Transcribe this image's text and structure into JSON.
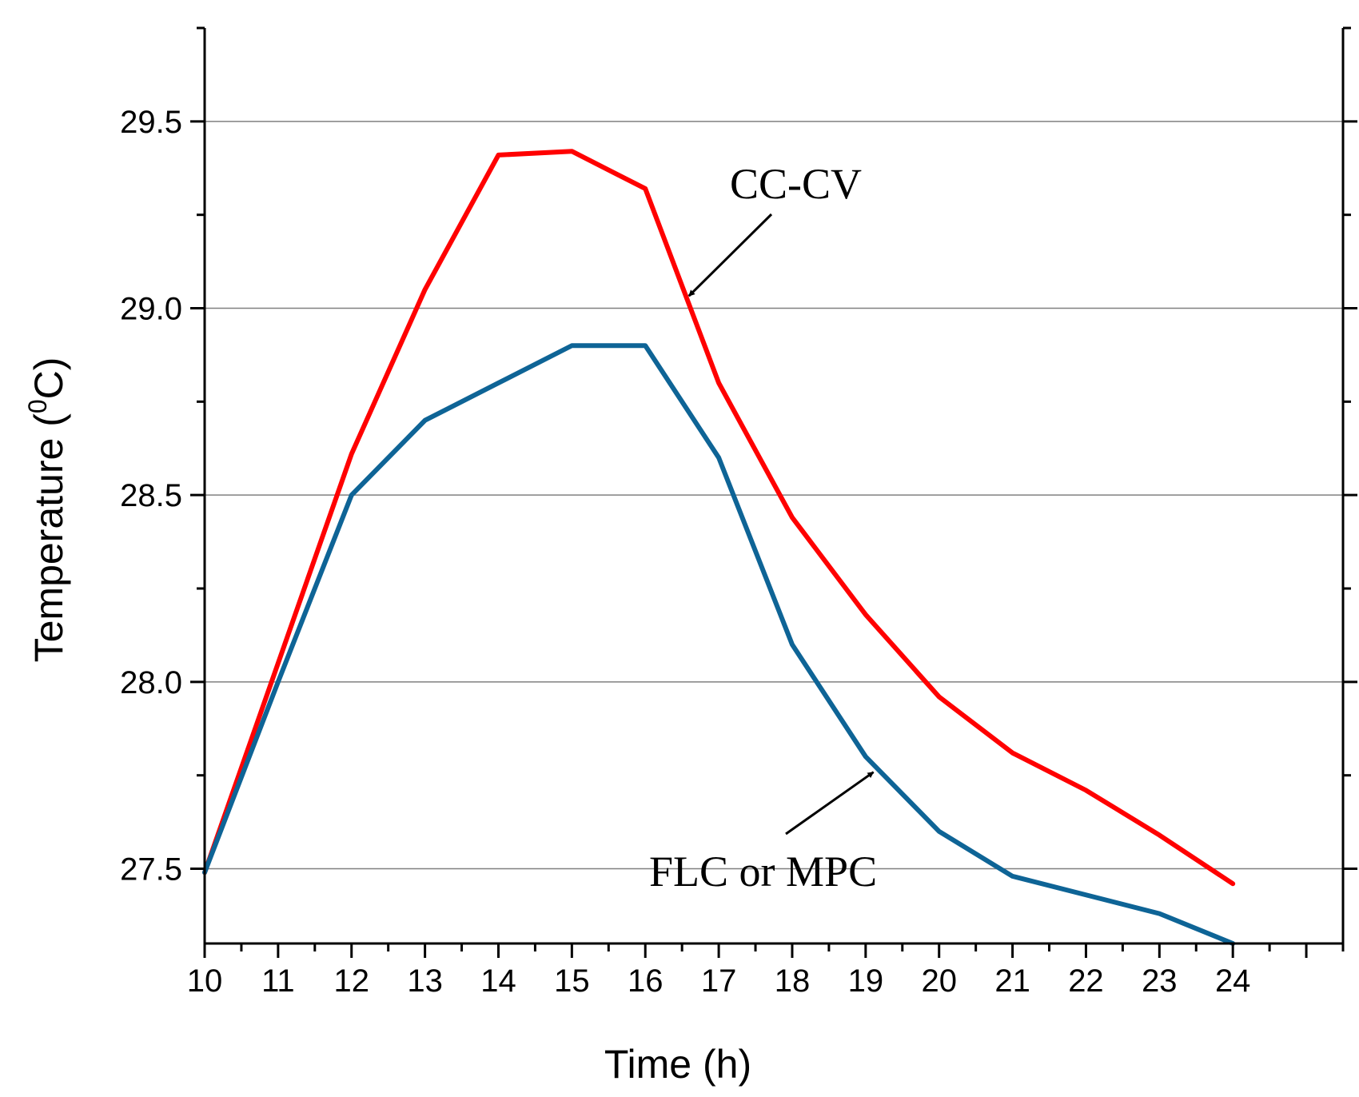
{
  "chart_data": {
    "type": "line",
    "title": "",
    "xlabel": "Time (h)",
    "ylabel_main": "Temperature (",
    "ylabel_sup": "0",
    "ylabel_end": "C)",
    "xlim": [
      10,
      25.5
    ],
    "ylim": [
      27.3,
      29.75
    ],
    "x_ticks": [
      10,
      11,
      12,
      13,
      14,
      15,
      16,
      17,
      18,
      19,
      20,
      21,
      22,
      23,
      24
    ],
    "y_ticks": [
      27.5,
      28.0,
      28.5,
      29.0,
      29.5
    ],
    "y_tick_labels": [
      "27.5",
      "28.0",
      "28.5",
      "29.0",
      "29.5"
    ],
    "grid": true,
    "series": [
      {
        "name": "CC-CV",
        "color": "#ff0000",
        "x": [
          10,
          11,
          12,
          13,
          14,
          15,
          16,
          17,
          18,
          19,
          20,
          21,
          22,
          23,
          24
        ],
        "values": [
          27.49,
          28.05,
          28.61,
          29.05,
          29.41,
          29.42,
          29.32,
          28.8,
          28.44,
          28.18,
          27.96,
          27.81,
          27.71,
          27.59,
          27.46
        ]
      },
      {
        "name": "FLC or MPC",
        "color": "#0e6496",
        "x": [
          10,
          11,
          12,
          13,
          14,
          15,
          16,
          17,
          18,
          19,
          20,
          21,
          22,
          23,
          24
        ],
        "values": [
          27.49,
          28.0,
          28.5,
          28.7,
          28.8,
          28.9,
          28.9,
          28.6,
          28.1,
          27.8,
          27.6,
          27.48,
          27.43,
          27.38,
          27.3
        ]
      }
    ],
    "annotations": [
      {
        "text": "CC-CV",
        "arrow_target": [
          16.55,
          29.02
        ]
      },
      {
        "text": "FLC or MPC",
        "arrow_target": [
          19.15,
          27.75
        ]
      }
    ]
  }
}
